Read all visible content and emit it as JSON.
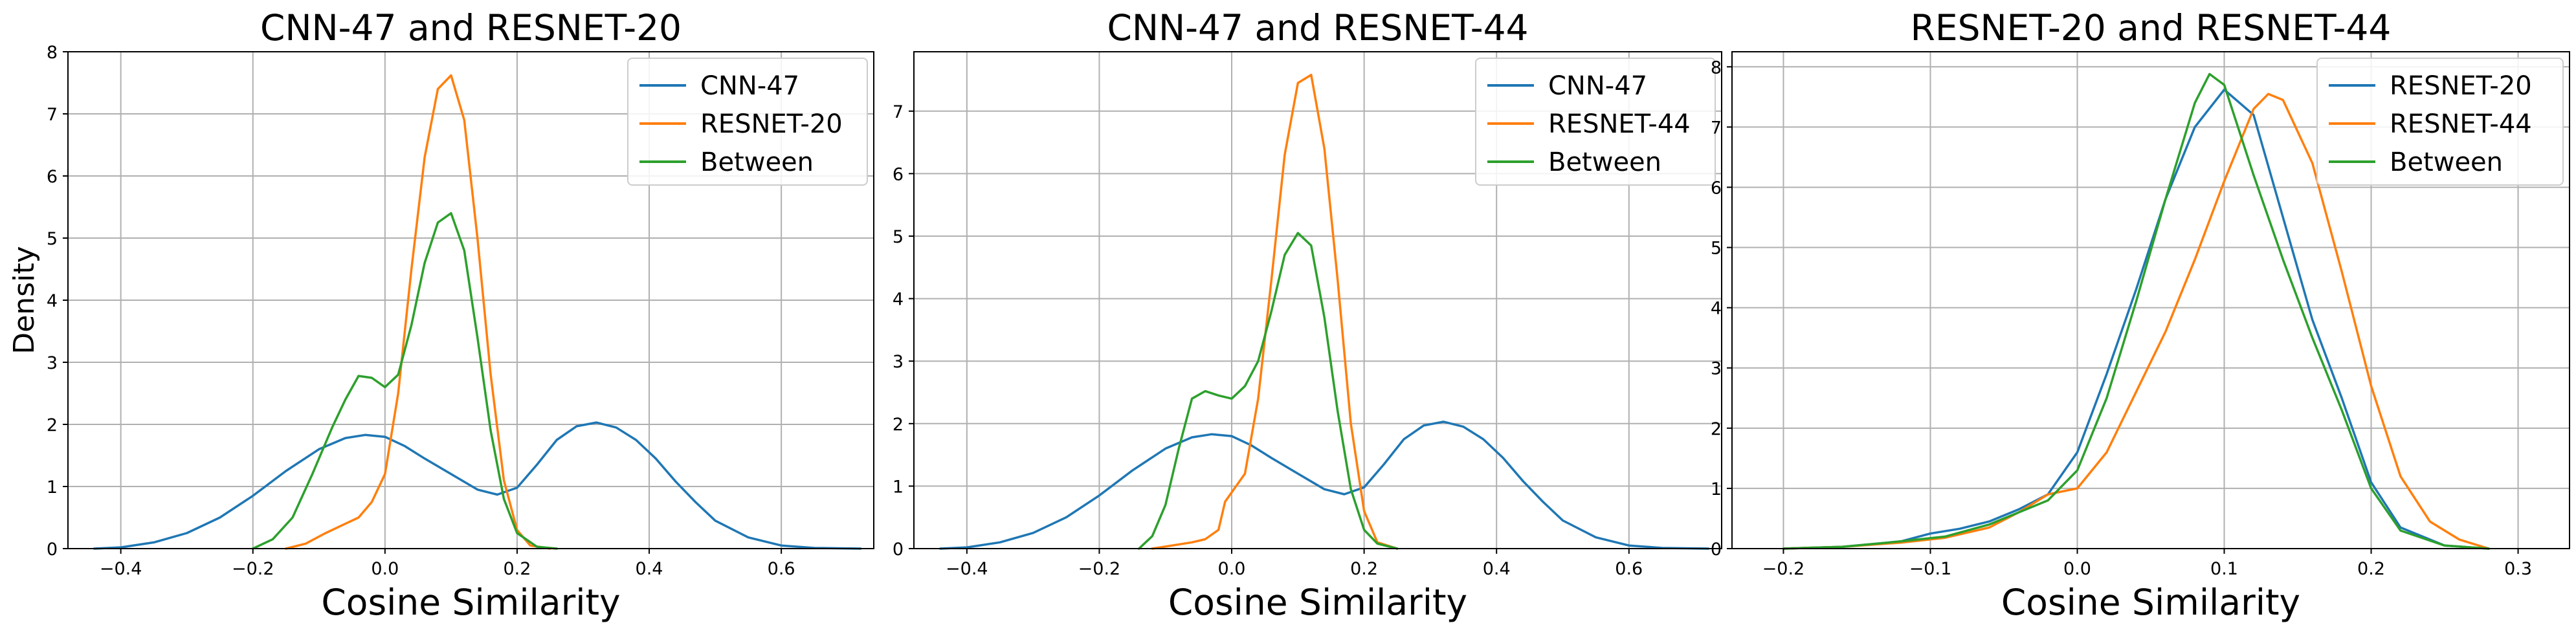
{
  "figure": {
    "colors": {
      "blue": "#1f77b4",
      "orange": "#ff7f0e",
      "green": "#2ca02c"
    }
  },
  "chart_data": [
    {
      "type": "line",
      "title": "CNN-47 and RESNET-20",
      "xlabel": "Cosine Similarity",
      "ylabel": "Density",
      "xlim": [
        -0.48,
        0.74
      ],
      "ylim": [
        0,
        8
      ],
      "xticks": [
        -0.4,
        -0.2,
        0.0,
        0.2,
        0.4,
        0.6
      ],
      "xtick_labels": [
        "−0.4",
        "−0.2",
        "0.0",
        "0.2",
        "0.4",
        "0.6"
      ],
      "yticks": [
        0,
        1,
        2,
        3,
        4,
        5,
        6,
        7,
        8
      ],
      "ytick_labels": [
        "0",
        "1",
        "2",
        "3",
        "4",
        "5",
        "6",
        "7",
        "8"
      ],
      "grid": true,
      "legend_position": "top-right",
      "series": [
        {
          "name": "CNN-47",
          "color": "#1f77b4",
          "x": [
            -0.44,
            -0.4,
            -0.35,
            -0.3,
            -0.25,
            -0.2,
            -0.15,
            -0.1,
            -0.06,
            -0.03,
            0.0,
            0.03,
            0.06,
            0.1,
            0.14,
            0.17,
            0.2,
            0.23,
            0.26,
            0.29,
            0.32,
            0.35,
            0.38,
            0.41,
            0.44,
            0.47,
            0.5,
            0.55,
            0.6,
            0.65,
            0.72
          ],
          "y": [
            0.0,
            0.02,
            0.1,
            0.25,
            0.5,
            0.85,
            1.25,
            1.6,
            1.78,
            1.83,
            1.8,
            1.65,
            1.45,
            1.2,
            0.95,
            0.87,
            0.98,
            1.35,
            1.75,
            1.97,
            2.03,
            1.95,
            1.75,
            1.45,
            1.08,
            0.75,
            0.45,
            0.18,
            0.05,
            0.01,
            0.0
          ]
        },
        {
          "name": "RESNET-20",
          "color": "#ff7f0e",
          "x": [
            -0.15,
            -0.12,
            -0.09,
            -0.06,
            -0.04,
            -0.02,
            0.0,
            0.02,
            0.04,
            0.06,
            0.08,
            0.1,
            0.12,
            0.14,
            0.16,
            0.18,
            0.2,
            0.22,
            0.25
          ],
          "y": [
            0.0,
            0.08,
            0.25,
            0.4,
            0.5,
            0.75,
            1.2,
            2.5,
            4.5,
            6.3,
            7.4,
            7.62,
            6.9,
            5.0,
            2.8,
            1.1,
            0.3,
            0.05,
            0.0
          ]
        },
        {
          "name": "Between",
          "color": "#2ca02c",
          "x": [
            -0.2,
            -0.17,
            -0.14,
            -0.11,
            -0.08,
            -0.06,
            -0.04,
            -0.02,
            0.0,
            0.02,
            0.04,
            0.06,
            0.08,
            0.1,
            0.12,
            0.14,
            0.16,
            0.18,
            0.2,
            0.23,
            0.26
          ],
          "y": [
            0.0,
            0.15,
            0.5,
            1.2,
            1.95,
            2.4,
            2.78,
            2.75,
            2.6,
            2.8,
            3.6,
            4.6,
            5.25,
            5.4,
            4.8,
            3.4,
            1.9,
            0.8,
            0.25,
            0.03,
            0.0
          ]
        }
      ]
    },
    {
      "type": "line",
      "title": "CNN-47 and RESNET-44",
      "xlabel": "Cosine Similarity",
      "ylabel": "",
      "xlim": [
        -0.48,
        0.74
      ],
      "ylim": [
        0,
        7.95
      ],
      "xticks": [
        -0.4,
        -0.2,
        0.0,
        0.2,
        0.4,
        0.6
      ],
      "xtick_labels": [
        "−0.4",
        "−0.2",
        "0.0",
        "0.2",
        "0.4",
        "0.6"
      ],
      "yticks": [
        0,
        1,
        2,
        3,
        4,
        5,
        6,
        7
      ],
      "ytick_labels": [
        "0",
        "1",
        "2",
        "3",
        "4",
        "5",
        "6",
        "7"
      ],
      "grid": true,
      "legend_position": "top-right",
      "series": [
        {
          "name": "CNN-47",
          "color": "#1f77b4",
          "x": [
            -0.44,
            -0.4,
            -0.35,
            -0.3,
            -0.25,
            -0.2,
            -0.15,
            -0.1,
            -0.06,
            -0.03,
            0.0,
            0.03,
            0.06,
            0.1,
            0.14,
            0.17,
            0.2,
            0.23,
            0.26,
            0.29,
            0.32,
            0.35,
            0.38,
            0.41,
            0.44,
            0.47,
            0.5,
            0.55,
            0.6,
            0.65,
            0.72
          ],
          "y": [
            0.0,
            0.02,
            0.1,
            0.25,
            0.5,
            0.85,
            1.25,
            1.6,
            1.78,
            1.83,
            1.8,
            1.65,
            1.45,
            1.2,
            0.95,
            0.87,
            0.98,
            1.35,
            1.75,
            1.97,
            2.03,
            1.95,
            1.75,
            1.45,
            1.08,
            0.75,
            0.45,
            0.18,
            0.05,
            0.01,
            0.0
          ]
        },
        {
          "name": "RESNET-44",
          "color": "#ff7f0e",
          "x": [
            -0.12,
            -0.09,
            -0.06,
            -0.04,
            -0.02,
            -0.01,
            0.0,
            0.02,
            0.04,
            0.06,
            0.08,
            0.1,
            0.12,
            0.14,
            0.16,
            0.18,
            0.2,
            0.22,
            0.25
          ],
          "y": [
            0.0,
            0.05,
            0.1,
            0.15,
            0.3,
            0.75,
            0.9,
            1.2,
            2.4,
            4.3,
            6.3,
            7.45,
            7.58,
            6.4,
            4.3,
            2.0,
            0.6,
            0.1,
            0.0
          ]
        },
        {
          "name": "Between",
          "color": "#2ca02c",
          "x": [
            -0.14,
            -0.12,
            -0.1,
            -0.08,
            -0.06,
            -0.04,
            -0.02,
            0.0,
            0.02,
            0.04,
            0.06,
            0.08,
            0.1,
            0.12,
            0.14,
            0.16,
            0.18,
            0.2,
            0.22,
            0.25
          ],
          "y": [
            0.0,
            0.2,
            0.7,
            1.6,
            2.4,
            2.52,
            2.45,
            2.4,
            2.6,
            3.0,
            3.8,
            4.7,
            5.05,
            4.85,
            3.7,
            2.2,
            0.95,
            0.3,
            0.08,
            0.0
          ]
        }
      ]
    },
    {
      "type": "line",
      "title": "RESNET-20 and RESNET-44",
      "xlabel": "Cosine Similarity",
      "ylabel": "",
      "xlim": [
        -0.235,
        0.335
      ],
      "ylim": [
        0,
        8.25
      ],
      "xticks": [
        -0.2,
        -0.1,
        0.0,
        0.1,
        0.2,
        0.3
      ],
      "xtick_labels": [
        "−0.2",
        "−0.1",
        "0.0",
        "0.1",
        "0.2",
        "0.3"
      ],
      "yticks": [
        0,
        1,
        2,
        3,
        4,
        5,
        6,
        7,
        8
      ],
      "ytick_labels": [
        "0",
        "1",
        "2",
        "3",
        "4",
        "5",
        "6",
        "7",
        "8"
      ],
      "grid": true,
      "legend_position": "top-right",
      "series": [
        {
          "name": "RESNET-20",
          "color": "#1f77b4",
          "x": [
            -0.2,
            -0.16,
            -0.12,
            -0.1,
            -0.08,
            -0.06,
            -0.04,
            -0.02,
            0.0,
            0.02,
            0.04,
            0.06,
            0.08,
            0.1,
            0.12,
            0.14,
            0.16,
            0.18,
            0.2,
            0.22,
            0.25,
            0.28
          ],
          "y": [
            0.0,
            0.03,
            0.12,
            0.25,
            0.33,
            0.45,
            0.65,
            0.9,
            1.6,
            2.9,
            4.3,
            5.8,
            7.0,
            7.62,
            7.2,
            5.5,
            3.8,
            2.5,
            1.1,
            0.35,
            0.05,
            0.0
          ]
        },
        {
          "name": "RESNET-44",
          "color": "#ff7f0e",
          "x": [
            -0.2,
            -0.16,
            -0.12,
            -0.09,
            -0.06,
            -0.04,
            -0.02,
            0.0,
            0.02,
            0.04,
            0.06,
            0.08,
            0.1,
            0.12,
            0.13,
            0.14,
            0.16,
            0.18,
            0.2,
            0.22,
            0.24,
            0.26,
            0.28
          ],
          "y": [
            0.0,
            0.03,
            0.1,
            0.18,
            0.35,
            0.6,
            0.9,
            1.0,
            1.6,
            2.6,
            3.6,
            4.8,
            6.1,
            7.3,
            7.55,
            7.45,
            6.4,
            4.6,
            2.7,
            1.2,
            0.45,
            0.15,
            0.0
          ]
        },
        {
          "name": "Between",
          "color": "#2ca02c",
          "x": [
            -0.2,
            -0.16,
            -0.12,
            -0.09,
            -0.06,
            -0.04,
            -0.02,
            0.0,
            0.02,
            0.04,
            0.06,
            0.08,
            0.09,
            0.1,
            0.12,
            0.14,
            0.16,
            0.18,
            0.2,
            0.22,
            0.25,
            0.28
          ],
          "y": [
            0.0,
            0.03,
            0.12,
            0.2,
            0.4,
            0.6,
            0.8,
            1.3,
            2.5,
            4.1,
            5.8,
            7.4,
            7.88,
            7.7,
            6.2,
            4.8,
            3.5,
            2.3,
            1.0,
            0.3,
            0.05,
            0.0
          ]
        }
      ]
    }
  ]
}
